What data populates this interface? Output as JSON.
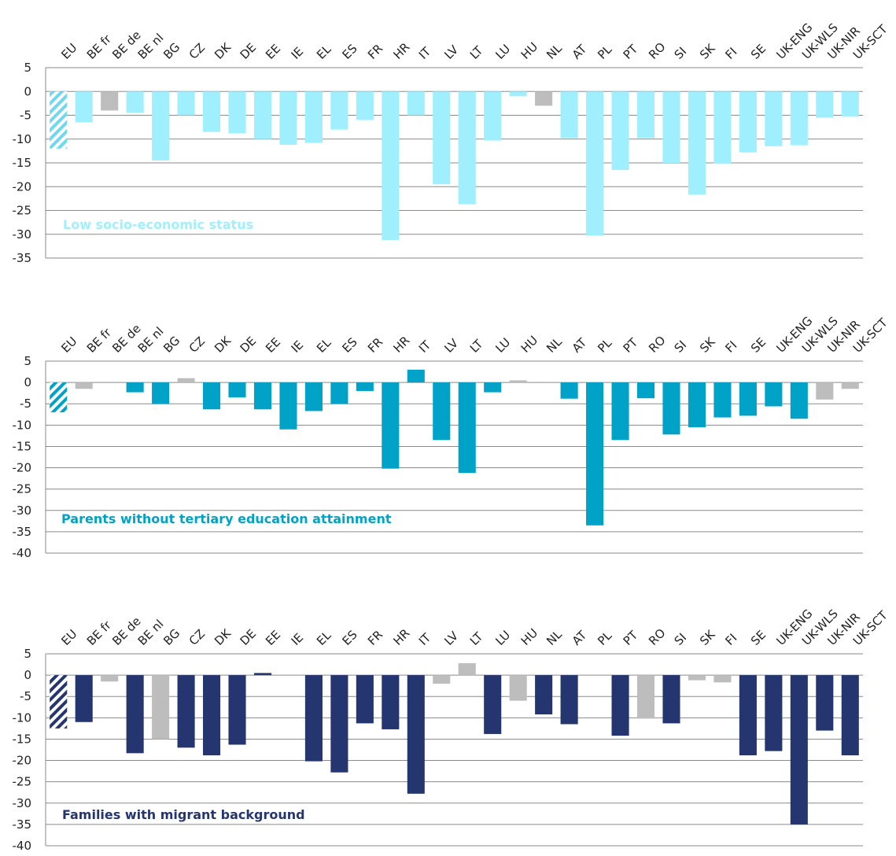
{
  "chart_data": [
    {
      "type": "bar",
      "title": "Low socio-economic status",
      "categories": [
        "EU",
        "BE fr",
        "BE de",
        "BE nl",
        "BG",
        "CZ",
        "DK",
        "DE",
        "EE",
        "IE",
        "EL",
        "ES",
        "FR",
        "HR",
        "IT",
        "LV",
        "LT",
        "LU",
        "HU",
        "NL",
        "AT",
        "PL",
        "PT",
        "RO",
        "SI",
        "SK",
        "FI",
        "SE",
        "UK-ENG",
        "UK-WLS",
        "UK-NIR",
        "UK-SCT"
      ],
      "values": [
        -12,
        -6.5,
        -4,
        -4.5,
        -14.5,
        -5,
        -8.5,
        -8.8,
        -10,
        -11.2,
        -10.8,
        -8,
        -6,
        -31.2,
        -5,
        -19.5,
        -23.7,
        -10.3,
        -1,
        -3,
        -9.8,
        -30.3,
        -16.5,
        -9.8,
        -15,
        -21.7,
        -15.2,
        -12.8,
        -11.5,
        -11.3,
        -5.5,
        -5.3
      ],
      "significant": [
        true,
        true,
        false,
        true,
        true,
        true,
        true,
        true,
        true,
        true,
        true,
        true,
        true,
        true,
        true,
        true,
        true,
        true,
        true,
        false,
        true,
        true,
        true,
        true,
        true,
        true,
        true,
        true,
        true,
        true,
        true,
        true
      ],
      "ylim": [
        -35,
        5
      ],
      "yticks": [
        5,
        0,
        -5,
        -10,
        -15,
        -20,
        -25,
        -30,
        -35
      ],
      "colors": {
        "significant": "#9fefff",
        "not_significant": "#bdbdbd",
        "hatch": "#6fd8ee",
        "title": "#9fefff"
      }
    },
    {
      "type": "bar",
      "title": "Parents without tertiary education attainment",
      "categories": [
        "EU",
        "BE fr",
        "BE de",
        "BE nl",
        "BG",
        "CZ",
        "DK",
        "DE",
        "EE",
        "IE",
        "EL",
        "ES",
        "FR",
        "HR",
        "IT",
        "LV",
        "LT",
        "LU",
        "HU",
        "NL",
        "AT",
        "PL",
        "PT",
        "RO",
        "SI",
        "SK",
        "FI",
        "SE",
        "UK-ENG",
        "UK-WLS",
        "UK-NIR",
        "UK-SCT"
      ],
      "values": [
        -7,
        -1.5,
        null,
        -2.3,
        -5,
        1,
        -6.3,
        -3.5,
        -6.3,
        -11,
        -6.7,
        -5,
        -2,
        -20.2,
        3,
        -13.5,
        -21.2,
        -2.3,
        0.5,
        null,
        -3.8,
        -33.5,
        -13.5,
        -3.7,
        -12.2,
        -10.5,
        -8.2,
        -7.8,
        -5.6,
        -8.5,
        -4,
        -1.5
      ],
      "significant": [
        true,
        false,
        false,
        true,
        true,
        false,
        true,
        true,
        true,
        true,
        true,
        true,
        true,
        true,
        true,
        true,
        true,
        true,
        false,
        false,
        true,
        true,
        true,
        true,
        true,
        true,
        true,
        true,
        true,
        true,
        false,
        false
      ],
      "ylim": [
        -40,
        5
      ],
      "yticks": [
        5,
        0,
        -5,
        -10,
        -15,
        -20,
        -25,
        -30,
        -35,
        -40
      ],
      "colors": {
        "significant": "#00a2c8",
        "not_significant": "#bdbdbd",
        "hatch": "#00a2c8",
        "title": "#00a2c8"
      }
    },
    {
      "type": "bar",
      "title": "Families with migrant background",
      "categories": [
        "EU",
        "BE fr",
        "BE de",
        "BE nl",
        "BG",
        "CZ",
        "DK",
        "DE",
        "EE",
        "IE",
        "EL",
        "ES",
        "FR",
        "HR",
        "IT",
        "LV",
        "LT",
        "LU",
        "HU",
        "NL",
        "AT",
        "PL",
        "PT",
        "RO",
        "SI",
        "SK",
        "FI",
        "SE",
        "UK-ENG",
        "UK-WLS",
        "UK-NIR",
        "UK-SCT"
      ],
      "values": [
        -12.5,
        -11,
        -1.5,
        -18.3,
        -15,
        -17,
        -18.8,
        -16.3,
        0.5,
        null,
        -20.2,
        -22.8,
        -11.3,
        -12.7,
        -27.8,
        -2,
        2.8,
        -13.8,
        -6,
        -9.2,
        -11.5,
        null,
        -14.2,
        -10.2,
        -11.3,
        -1.2,
        -1.7,
        -18.8,
        -17.8,
        -35,
        -13,
        -18.8
      ],
      "significant": [
        true,
        true,
        false,
        true,
        false,
        true,
        true,
        true,
        true,
        false,
        true,
        true,
        true,
        true,
        true,
        false,
        false,
        true,
        false,
        true,
        true,
        false,
        true,
        false,
        true,
        false,
        false,
        true,
        true,
        true,
        true,
        true
      ],
      "ylim": [
        -40,
        5
      ],
      "yticks": [
        5,
        0,
        -5,
        -10,
        -15,
        -20,
        -25,
        -30,
        -35,
        -40
      ],
      "colors": {
        "significant": "#253570",
        "not_significant": "#bdbdbd",
        "hatch": "#253570",
        "title": "#253570"
      }
    }
  ]
}
